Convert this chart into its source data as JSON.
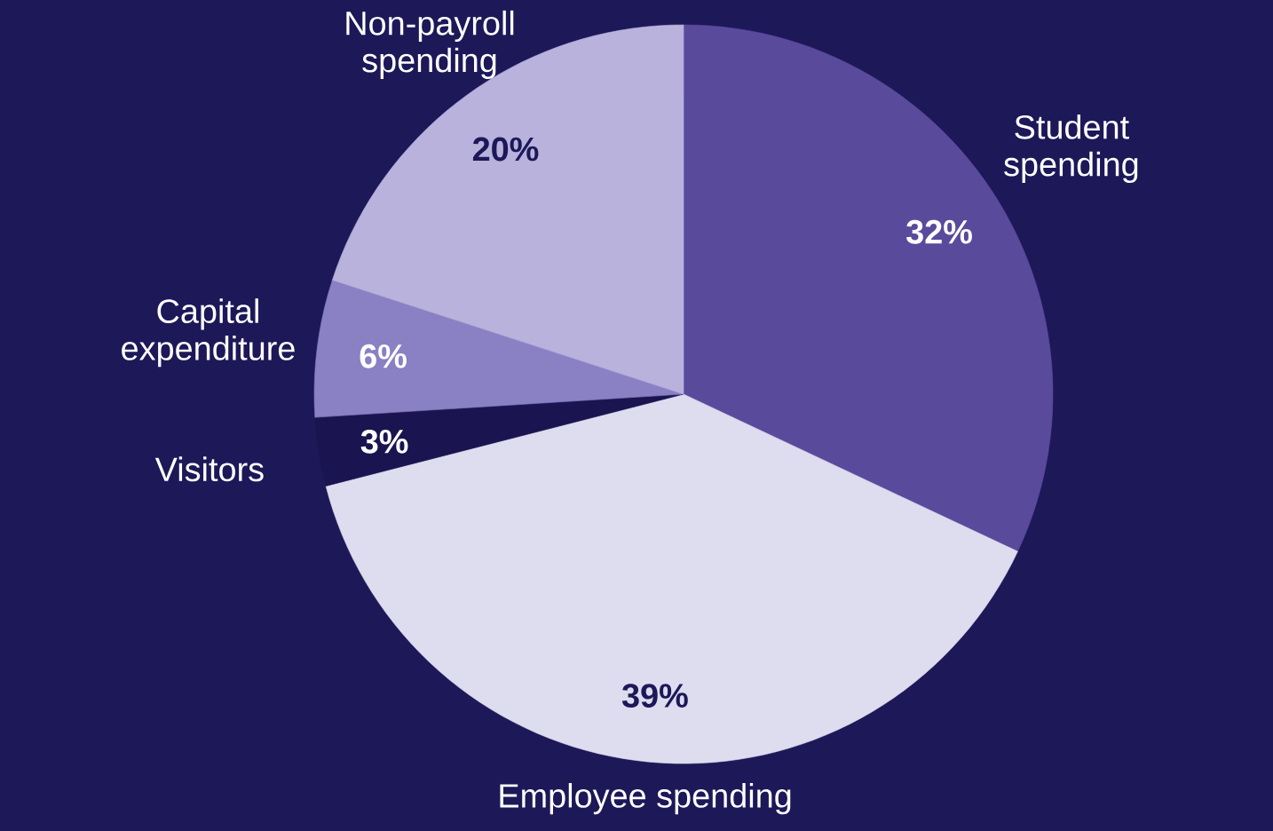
{
  "chart_data": {
    "type": "pie",
    "categories": [
      "Student spending",
      "Employee spending",
      "Visitors",
      "Capital expenditure",
      "Non-payroll spending"
    ],
    "values": [
      32,
      39,
      3,
      6,
      20
    ],
    "value_labels": [
      "32%",
      "39%",
      "3%",
      "6%",
      "20%"
    ],
    "colors": [
      "#5a4a9c",
      "#dedcef",
      "#1a1550",
      "#8a80c4",
      "#b8b2dd"
    ]
  }
}
